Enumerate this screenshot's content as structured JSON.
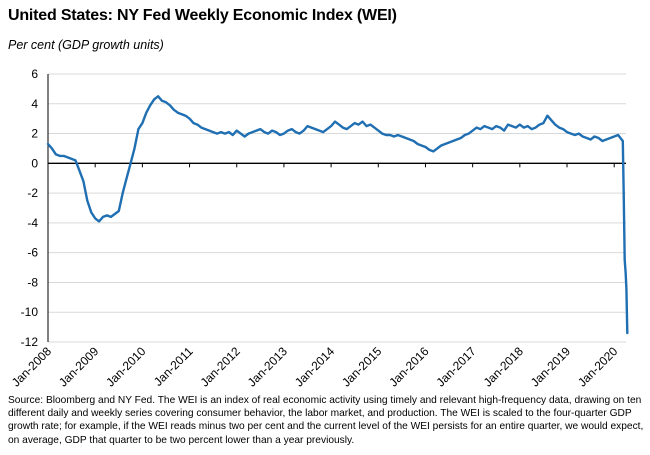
{
  "title": "United States: NY Fed Weekly Economic Index (WEI)",
  "subtitle": "Per cent (GDP growth units)",
  "source": "Source: Bloomberg and NY Fed.  The WEI is an index of real economic activity using timely and relevant high-frequency data, drawing on ten different daily and weekly series covering consumer behavior, the labor market, and production. The WEI is scaled to the four-quarter GDP growth rate; for example, if the WEI reads minus two per cent and the current level of the WEI persists for an entire quarter, we would expect, on average, GDP that quarter to be two percent lower than a year previously.",
  "colors": {
    "line": "#1f6fb2",
    "grid": "#d9d9d9",
    "axis": "#000000"
  },
  "chart_data": {
    "type": "line",
    "title": "United States: NY Fed Weekly Economic Index (WEI)",
    "ylabel": "Per cent (GDP growth units)",
    "xlabel": "",
    "ylim": [
      -12,
      6
    ],
    "yticks": [
      6,
      4,
      2,
      0,
      -2,
      -4,
      -6,
      -8,
      -10,
      -12
    ],
    "xlim": [
      "2008-01",
      "2020-04"
    ],
    "xtick_labels": [
      "Jan-2008",
      "Jan-2009",
      "Jan-2010",
      "Jan-2011",
      "Jan-2012",
      "Jan-2013",
      "Jan-2014",
      "Jan-2015",
      "Jan-2016",
      "Jan-2017",
      "Jan-2018",
      "Jan-2019",
      "Jan-2020"
    ],
    "grid": true,
    "legend": "none",
    "series": [
      {
        "x": [
          "2008-01",
          "2008-02",
          "2008-03",
          "2008-04",
          "2008-05",
          "2008-06",
          "2008-07",
          "2008-08",
          "2008-09",
          "2008-10",
          "2008-11",
          "2008-12",
          "2009-01",
          "2009-02",
          "2009-03",
          "2009-04",
          "2009-05",
          "2009-06",
          "2009-07",
          "2009-08",
          "2009-09",
          "2009-10",
          "2009-11",
          "2009-12",
          "2010-01",
          "2010-02",
          "2010-03",
          "2010-04",
          "2010-05",
          "2010-06",
          "2010-07",
          "2010-08",
          "2010-09",
          "2010-10",
          "2010-11",
          "2010-12",
          "2011-01",
          "2011-02",
          "2011-03",
          "2011-04",
          "2011-05",
          "2011-06",
          "2011-07",
          "2011-08",
          "2011-09",
          "2011-10",
          "2011-11",
          "2011-12",
          "2012-01",
          "2012-02",
          "2012-03",
          "2012-04",
          "2012-05",
          "2012-06",
          "2012-07",
          "2012-08",
          "2012-09",
          "2012-10",
          "2012-11",
          "2012-12",
          "2013-01",
          "2013-02",
          "2013-03",
          "2013-04",
          "2013-05",
          "2013-06",
          "2013-07",
          "2013-08",
          "2013-09",
          "2013-10",
          "2013-11",
          "2013-12",
          "2014-01",
          "2014-02",
          "2014-03",
          "2014-04",
          "2014-05",
          "2014-06",
          "2014-07",
          "2014-08",
          "2014-09",
          "2014-10",
          "2014-11",
          "2014-12",
          "2015-01",
          "2015-02",
          "2015-03",
          "2015-04",
          "2015-05",
          "2015-06",
          "2015-07",
          "2015-08",
          "2015-09",
          "2015-10",
          "2015-11",
          "2015-12",
          "2016-01",
          "2016-02",
          "2016-03",
          "2016-04",
          "2016-05",
          "2016-06",
          "2016-07",
          "2016-08",
          "2016-09",
          "2016-10",
          "2016-11",
          "2016-12",
          "2017-01",
          "2017-02",
          "2017-03",
          "2017-04",
          "2017-05",
          "2017-06",
          "2017-07",
          "2017-08",
          "2017-09",
          "2017-10",
          "2017-11",
          "2017-12",
          "2018-01",
          "2018-02",
          "2018-03",
          "2018-04",
          "2018-05",
          "2018-06",
          "2018-07",
          "2018-08",
          "2018-09",
          "2018-10",
          "2018-11",
          "2018-12",
          "2019-01",
          "2019-02",
          "2019-03",
          "2019-04",
          "2019-05",
          "2019-06",
          "2019-07",
          "2019-08",
          "2019-09",
          "2019-10",
          "2019-11",
          "2019-12",
          "2020-01",
          "2020-02",
          "2020-03-07",
          "2020-03-14",
          "2020-03-21",
          "2020-03-28",
          "2020-04-04",
          "2020-04-11"
        ],
        "y": [
          1.3,
          1.0,
          0.6,
          0.5,
          0.5,
          0.4,
          0.3,
          0.2,
          -0.5,
          -1.2,
          -2.5,
          -3.3,
          -3.7,
          -3.9,
          -3.6,
          -3.5,
          -3.6,
          -3.4,
          -3.2,
          -2.0,
          -1.0,
          0.0,
          1.0,
          2.3,
          2.7,
          3.4,
          3.9,
          4.3,
          4.5,
          4.2,
          4.1,
          3.9,
          3.6,
          3.4,
          3.3,
          3.2,
          3.0,
          2.7,
          2.6,
          2.4,
          2.3,
          2.2,
          2.1,
          2.0,
          2.1,
          2.0,
          2.1,
          1.9,
          2.2,
          2.0,
          1.8,
          2.0,
          2.1,
          2.2,
          2.3,
          2.1,
          2.0,
          2.2,
          2.1,
          1.9,
          2.0,
          2.2,
          2.3,
          2.1,
          2.0,
          2.2,
          2.5,
          2.4,
          2.3,
          2.2,
          2.1,
          2.3,
          2.5,
          2.8,
          2.6,
          2.4,
          2.3,
          2.5,
          2.7,
          2.6,
          2.8,
          2.5,
          2.6,
          2.4,
          2.2,
          2.0,
          1.9,
          1.9,
          1.8,
          1.9,
          1.8,
          1.7,
          1.6,
          1.5,
          1.3,
          1.2,
          1.1,
          0.9,
          0.8,
          1.0,
          1.2,
          1.3,
          1.4,
          1.5,
          1.6,
          1.7,
          1.9,
          2.0,
          2.2,
          2.4,
          2.3,
          2.5,
          2.4,
          2.3,
          2.5,
          2.4,
          2.2,
          2.6,
          2.5,
          2.4,
          2.6,
          2.4,
          2.5,
          2.3,
          2.4,
          2.6,
          2.7,
          3.2,
          2.9,
          2.6,
          2.4,
          2.3,
          2.1,
          2.0,
          1.9,
          2.0,
          1.8,
          1.7,
          1.6,
          1.8,
          1.7,
          1.5,
          1.6,
          1.7,
          1.8,
          1.9,
          1.5,
          -2.0,
          -6.5,
          -7.3,
          -8.4,
          -11.4
        ]
      }
    ]
  }
}
